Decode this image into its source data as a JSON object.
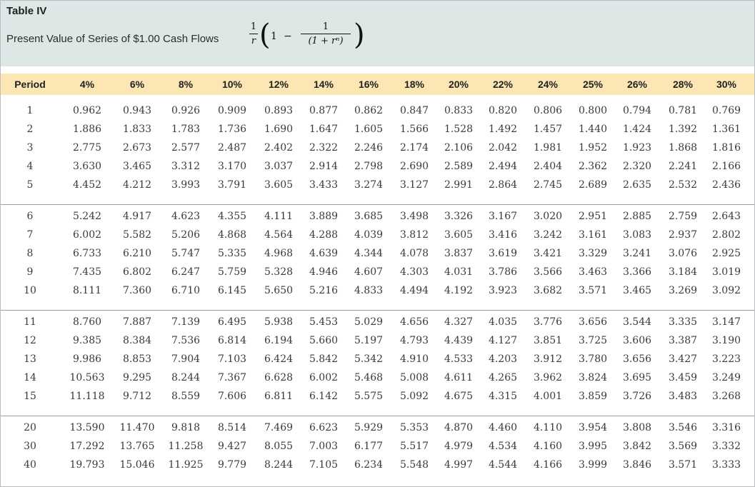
{
  "table": {
    "title": "Table IV",
    "subtitle": "Present Value of Series of $1.00 Cash Flows",
    "formula": {
      "outer_num": "1",
      "outer_den": "r",
      "one": "1",
      "minus": "−",
      "inner_num": "1",
      "inner_den": "(1 + rⁿ)"
    },
    "columns": [
      "Period",
      "4%",
      "6%",
      "8%",
      "10%",
      "12%",
      "14%",
      "16%",
      "18%",
      "20%",
      "22%",
      "24%",
      "25%",
      "26%",
      "28%",
      "30%"
    ],
    "groups": [
      [
        [
          "1",
          "0.962",
          "0.943",
          "0.926",
          "0.909",
          "0.893",
          "0.877",
          "0.862",
          "0.847",
          "0.833",
          "0.820",
          "0.806",
          "0.800",
          "0.794",
          "0.781",
          "0.769"
        ],
        [
          "2",
          "1.886",
          "1.833",
          "1.783",
          "1.736",
          "1.690",
          "1.647",
          "1.605",
          "1.566",
          "1.528",
          "1.492",
          "1.457",
          "1.440",
          "1.424",
          "1.392",
          "1.361"
        ],
        [
          "3",
          "2.775",
          "2.673",
          "2.577",
          "2.487",
          "2.402",
          "2.322",
          "2.246",
          "2.174",
          "2.106",
          "2.042",
          "1.981",
          "1.952",
          "1.923",
          "1.868",
          "1.816"
        ],
        [
          "4",
          "3.630",
          "3.465",
          "3.312",
          "3.170",
          "3.037",
          "2.914",
          "2.798",
          "2.690",
          "2.589",
          "2.494",
          "2.404",
          "2.362",
          "2.320",
          "2.241",
          "2.166"
        ],
        [
          "5",
          "4.452",
          "4.212",
          "3.993",
          "3.791",
          "3.605",
          "3.433",
          "3.274",
          "3.127",
          "2.991",
          "2.864",
          "2.745",
          "2.689",
          "2.635",
          "2.532",
          "2.436"
        ]
      ],
      [
        [
          "6",
          "5.242",
          "4.917",
          "4.623",
          "4.355",
          "4.111",
          "3.889",
          "3.685",
          "3.498",
          "3.326",
          "3.167",
          "3.020",
          "2.951",
          "2.885",
          "2.759",
          "2.643"
        ],
        [
          "7",
          "6.002",
          "5.582",
          "5.206",
          "4.868",
          "4.564",
          "4.288",
          "4.039",
          "3.812",
          "3.605",
          "3.416",
          "3.242",
          "3.161",
          "3.083",
          "2.937",
          "2.802"
        ],
        [
          "8",
          "6.733",
          "6.210",
          "5.747",
          "5.335",
          "4.968",
          "4.639",
          "4.344",
          "4.078",
          "3.837",
          "3.619",
          "3.421",
          "3.329",
          "3.241",
          "3.076",
          "2.925"
        ],
        [
          "9",
          "7.435",
          "6.802",
          "6.247",
          "5.759",
          "5.328",
          "4.946",
          "4.607",
          "4.303",
          "4.031",
          "3.786",
          "3.566",
          "3.463",
          "3.366",
          "3.184",
          "3.019"
        ],
        [
          "10",
          "8.111",
          "7.360",
          "6.710",
          "6.145",
          "5.650",
          "5.216",
          "4.833",
          "4.494",
          "4.192",
          "3.923",
          "3.682",
          "3.571",
          "3.465",
          "3.269",
          "3.092"
        ]
      ],
      [
        [
          "11",
          "8.760",
          "7.887",
          "7.139",
          "6.495",
          "5.938",
          "5.453",
          "5.029",
          "4.656",
          "4.327",
          "4.035",
          "3.776",
          "3.656",
          "3.544",
          "3.335",
          "3.147"
        ],
        [
          "12",
          "9.385",
          "8.384",
          "7.536",
          "6.814",
          "6.194",
          "5.660",
          "5.197",
          "4.793",
          "4.439",
          "4.127",
          "3.851",
          "3.725",
          "3.606",
          "3.387",
          "3.190"
        ],
        [
          "13",
          "9.986",
          "8.853",
          "7.904",
          "7.103",
          "6.424",
          "5.842",
          "5.342",
          "4.910",
          "4.533",
          "4.203",
          "3.912",
          "3.780",
          "3.656",
          "3.427",
          "3.223"
        ],
        [
          "14",
          "10.563",
          "9.295",
          "8.244",
          "7.367",
          "6.628",
          "6.002",
          "5.468",
          "5.008",
          "4.611",
          "4.265",
          "3.962",
          "3.824",
          "3.695",
          "3.459",
          "3.249"
        ],
        [
          "15",
          "11.118",
          "9.712",
          "8.559",
          "7.606",
          "6.811",
          "6.142",
          "5.575",
          "5.092",
          "4.675",
          "4.315",
          "4.001",
          "3.859",
          "3.726",
          "3.483",
          "3.268"
        ]
      ],
      [
        [
          "20",
          "13.590",
          "11.470",
          "9.818",
          "8.514",
          "7.469",
          "6.623",
          "5.929",
          "5.353",
          "4.870",
          "4.460",
          "4.110",
          "3.954",
          "3.808",
          "3.546",
          "3.316"
        ],
        [
          "30",
          "17.292",
          "13.765",
          "11.258",
          "9.427",
          "8.055",
          "7.003",
          "6.177",
          "5.517",
          "4.979",
          "4.534",
          "4.160",
          "3.995",
          "3.842",
          "3.569",
          "3.332"
        ],
        [
          "40",
          "19.793",
          "15.046",
          "11.925",
          "9.779",
          "8.244",
          "7.105",
          "6.234",
          "5.548",
          "4.997",
          "4.544",
          "4.166",
          "3.999",
          "3.846",
          "3.571",
          "3.333"
        ]
      ]
    ]
  }
}
